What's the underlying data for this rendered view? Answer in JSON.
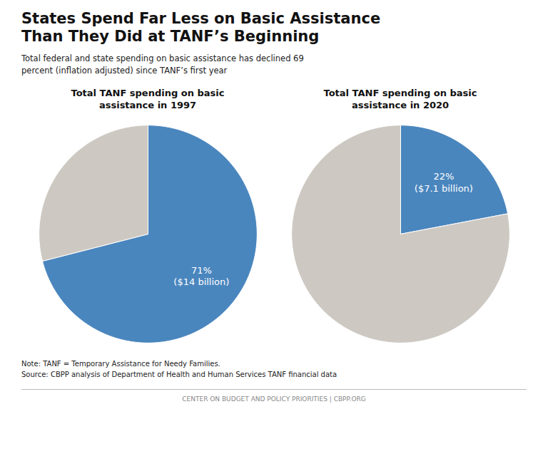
{
  "title": "States Spend Far Less on Basic Assistance\nThan They Did at TANF’s Beginning",
  "subtitle": "Total federal and state spending on basic assistance has declined 69\npercent (inflation adjusted) since TANF’s first year",
  "annotations": [
    "Note: TANF = Temporary Assistance for Needy Families.\nSource: CBPP analysis of Department of Health and Human Services TANF financial data",
    "CENTER ON BUDGET AND POLICY PRIORITIES  |  CBPP.ORG"
  ],
  "chart_data": [
    {
      "type": "pie",
      "title": "Total TANF spending on basic\nassistance in 1997",
      "values": [
        71,
        29
      ],
      "value_labels": [
        "71%\n($14 billion)",
        null
      ],
      "colors": [
        "#4a86be",
        "#cdc9c2"
      ],
      "data_labels": true
    },
    {
      "type": "pie",
      "title": "Total TANF spending on basic\nassistance in 2020",
      "values": [
        22,
        78
      ],
      "value_labels": [
        "22%\n($7.1 billion)",
        null
      ],
      "colors": [
        "#4a86be",
        "#cdc9c2"
      ],
      "data_labels": true
    }
  ]
}
